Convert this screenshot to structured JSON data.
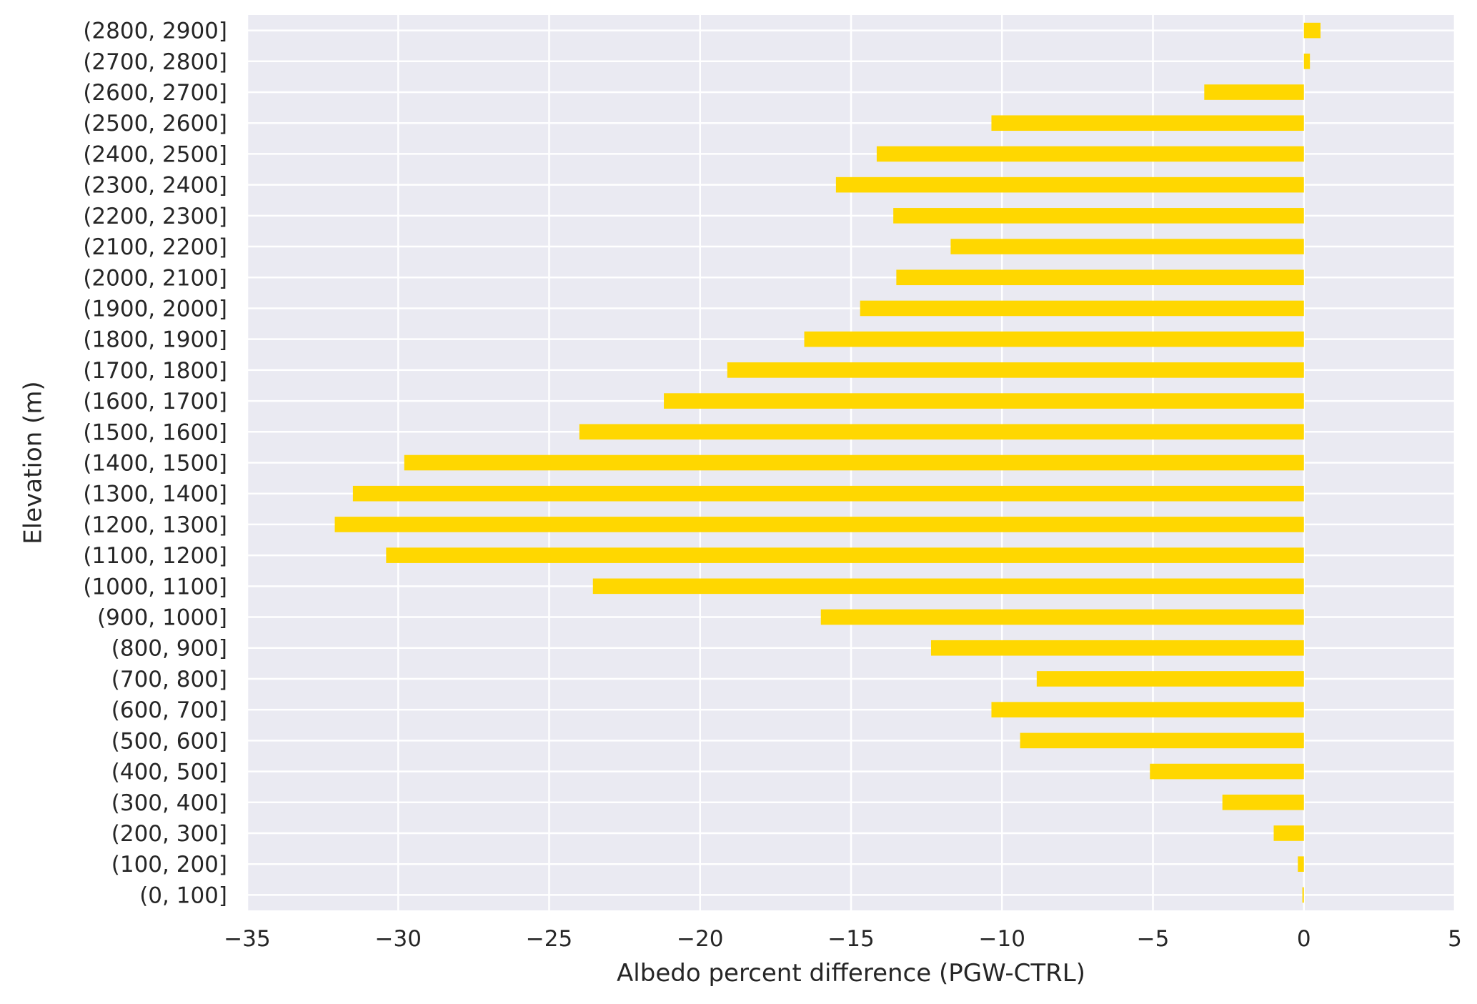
{
  "chart_data": {
    "type": "bar",
    "orientation": "horizontal",
    "xlabel": "Albedo percent difference (PGW-CTRL)",
    "ylabel": "Elevation (m)",
    "xlim": [
      -35,
      5
    ],
    "xticks": [
      -35,
      -30,
      -25,
      -20,
      -15,
      -10,
      -5,
      0,
      5
    ],
    "xtick_labels": [
      "−35",
      "−30",
      "−25",
      "−20",
      "−15",
      "−10",
      "−5",
      "0",
      "5"
    ],
    "grid": true,
    "categories": [
      "(0, 100]",
      "(100, 200]",
      "(200, 300]",
      "(300, 400]",
      "(400, 500]",
      "(500, 600]",
      "(600, 700]",
      "(700, 800]",
      "(800, 900]",
      "(900, 1000]",
      "(1000, 1100]",
      "(1100, 1200]",
      "(1200, 1300]",
      "(1300, 1400]",
      "(1400, 1500]",
      "(1500, 1600]",
      "(1600, 1700]",
      "(1700, 1800]",
      "(1800, 1900]",
      "(1900, 2000]",
      "(2000, 2100]",
      "(2100, 2200]",
      "(2200, 2300]",
      "(2300, 2400]",
      "(2400, 2500]",
      "(2500, 2600]",
      "(2600, 2700]",
      "(2700, 2800]",
      "(2800, 2900]"
    ],
    "values": [
      -0.05,
      -0.2,
      -1.0,
      -2.7,
      -5.1,
      -9.4,
      -10.35,
      -8.85,
      -12.35,
      -16.0,
      -23.55,
      -30.4,
      -32.1,
      -31.5,
      -29.8,
      -24.0,
      -21.2,
      -19.1,
      -16.55,
      -14.7,
      -13.5,
      -11.7,
      -13.6,
      -15.5,
      -14.15,
      -10.35,
      -3.3,
      0.2,
      0.55
    ]
  },
  "colors": {
    "bar": "#FFD700",
    "plot_background": "#EAEAF2",
    "grid": "#FFFFFF",
    "text": "#262626"
  }
}
